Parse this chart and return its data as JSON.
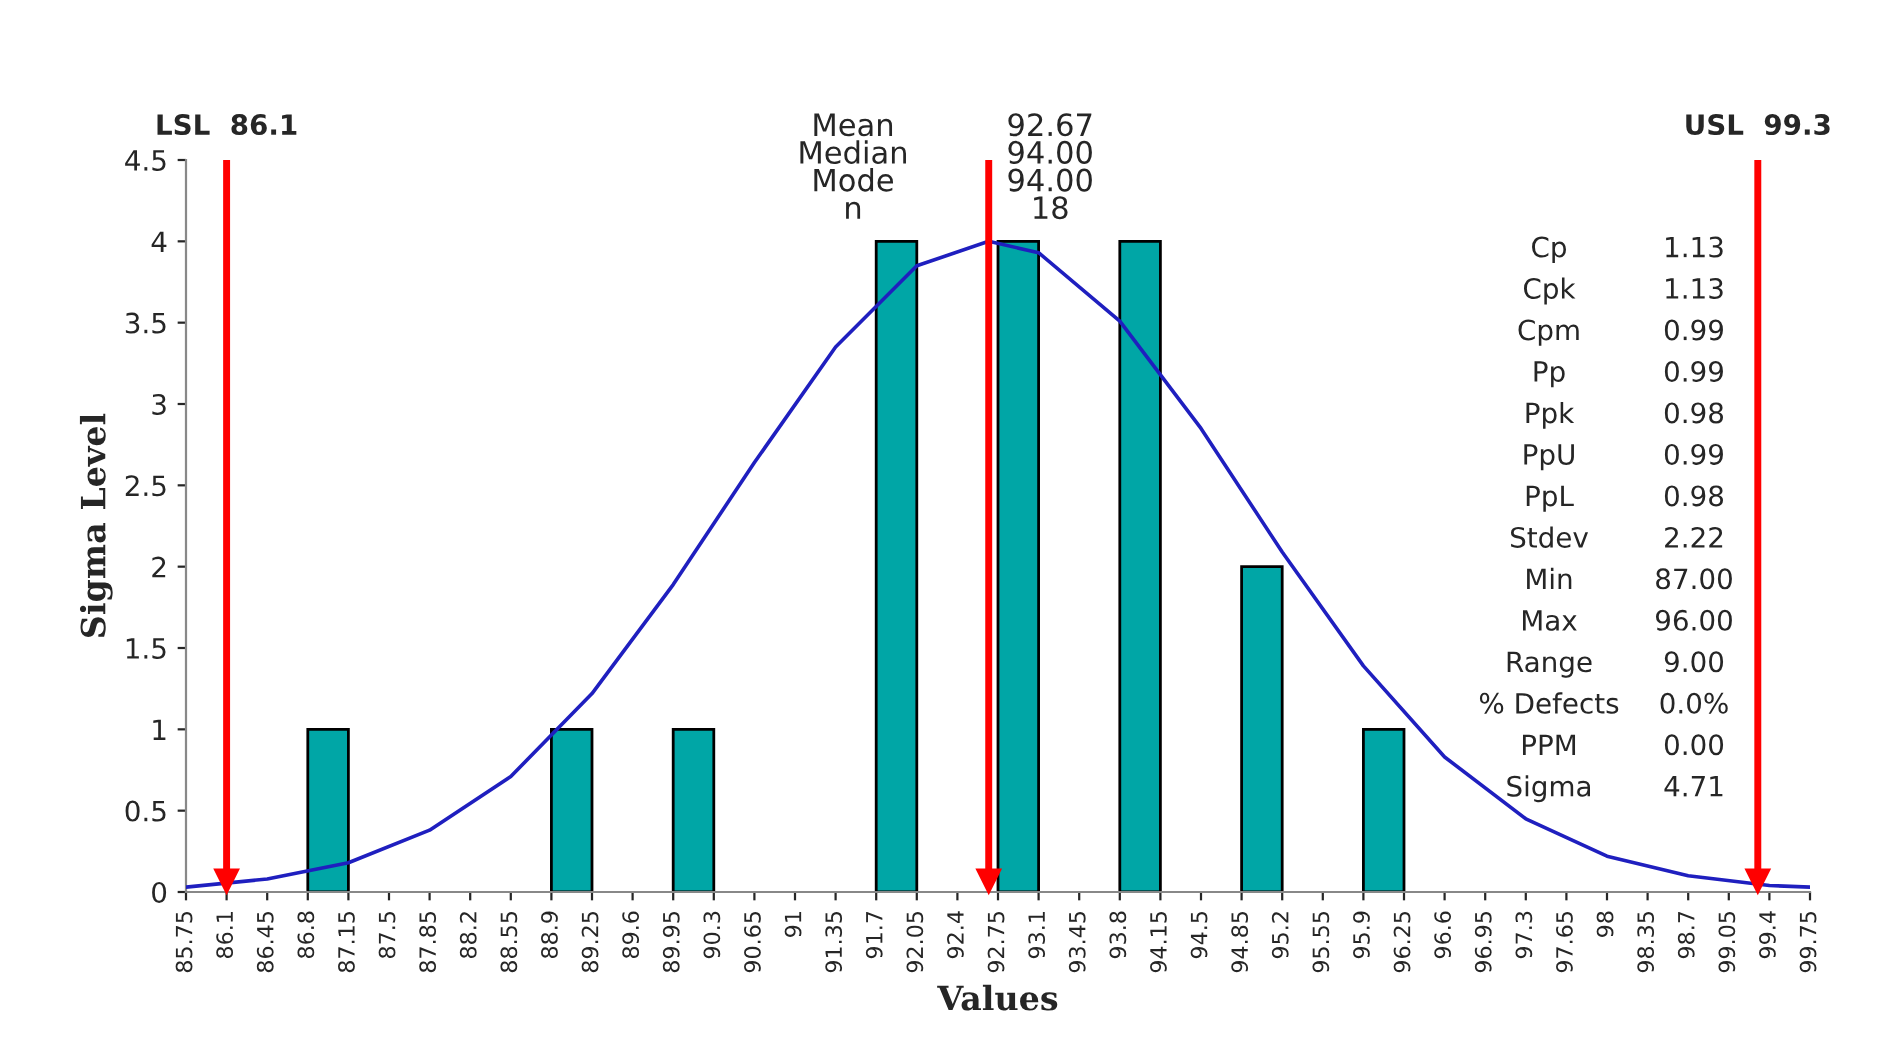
{
  "chart_data": {
    "type": "histogram",
    "xlabel": "Values",
    "ylabel": "Sigma Level",
    "bins": [
      85.75,
      86.1,
      86.45,
      86.8,
      87.15,
      87.5,
      87.85,
      88.2,
      88.55,
      88.9,
      89.25,
      89.6,
      89.95,
      90.3,
      90.65,
      91,
      91.35,
      91.7,
      92.05,
      92.4,
      92.75,
      93.1,
      93.45,
      93.8,
      94.15,
      94.5,
      94.85,
      95.2,
      95.55,
      95.9,
      96.25,
      96.6,
      96.95,
      97.3,
      97.65,
      98,
      98.35,
      98.7,
      99.05,
      99.4,
      99.75
    ],
    "values": [
      0,
      0,
      0,
      1,
      0,
      0,
      0,
      0,
      0,
      1,
      0,
      0,
      1,
      0,
      0,
      0,
      0,
      4,
      0,
      0,
      4,
      0,
      0,
      4,
      0,
      0,
      2,
      0,
      0,
      1,
      0,
      0,
      0,
      0,
      0,
      0,
      0,
      0,
      0,
      0
    ],
    "color": "#00a6a6",
    "series": [
      {
        "type": "line",
        "color": "#1f1fbf",
        "x": [
          85.75,
          86.45,
          87.15,
          87.85,
          88.55,
          89.25,
          89.95,
          90.65,
          91.35,
          92.05,
          92.67,
          93.1,
          93.8,
          94.5,
          95.2,
          95.9,
          96.6,
          97.3,
          98,
          98.7,
          99.4,
          99.75
        ],
        "values": [
          0.03,
          0.08,
          0.18,
          0.38,
          0.71,
          1.22,
          1.89,
          2.64,
          3.35,
          3.85,
          4.0,
          3.93,
          3.51,
          2.85,
          2.09,
          1.39,
          0.83,
          0.45,
          0.22,
          0.1,
          0.04,
          0.03
        ]
      }
    ],
    "xlim": [
      85.75,
      99.75
    ],
    "xticks": [
      85.75,
      86.1,
      86.45,
      86.8,
      87.15,
      87.5,
      87.85,
      88.2,
      88.55,
      88.9,
      89.25,
      89.6,
      89.95,
      90.3,
      90.65,
      91,
      91.35,
      91.7,
      92.05,
      92.4,
      92.75,
      93.1,
      93.45,
      93.8,
      94.15,
      94.5,
      94.85,
      95.2,
      95.55,
      95.9,
      96.25,
      96.6,
      96.95,
      97.3,
      97.65,
      98,
      98.35,
      98.7,
      99.05,
      99.4,
      99.75
    ],
    "ylim": [
      0,
      4.5
    ],
    "yticks": [
      0,
      0.5,
      1,
      1.5,
      2,
      2.5,
      3,
      3.5,
      4,
      4.5
    ],
    "grid": false,
    "legend": false,
    "ref_lines": [
      {
        "axis": "x",
        "value": 86.1,
        "label": "LSL  86.1",
        "color": "#ff0000"
      },
      {
        "axis": "x",
        "value": 92.67,
        "label": null,
        "color": "#ff0000"
      },
      {
        "axis": "x",
        "value": 99.3,
        "label": "USL  99.3",
        "color": "#ff0000"
      }
    ],
    "annotations": [
      "Mean",
      "92.67",
      "Median",
      "94.00",
      "Mode",
      "94.00",
      "n",
      "18",
      "Cp",
      "1.13",
      "Cpk",
      "1.13",
      "Cpm",
      "0.99",
      "Pp",
      "0.99",
      "Ppk",
      "0.98",
      "PpU",
      "0.99",
      "PpL",
      "0.98",
      "Stdev",
      "2.22",
      "Min",
      "87.00",
      "Max",
      "96.00",
      "Range",
      "9.00",
      "% Defects",
      "0.0%",
      "PPM",
      "0.00",
      "Sigma",
      "4.71"
    ]
  }
}
